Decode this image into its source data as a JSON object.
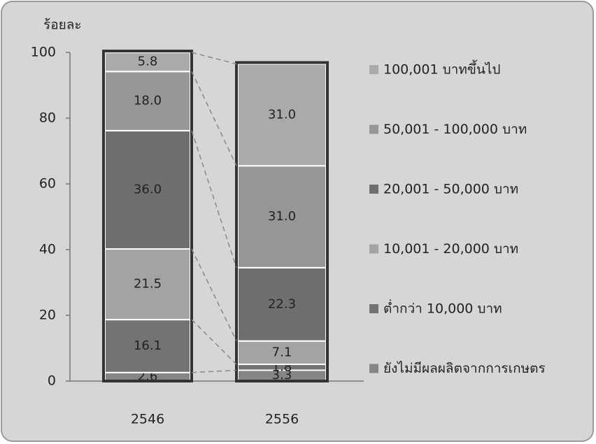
{
  "chart_data": {
    "type": "stacked_bar",
    "y_label": "ร้อยละ",
    "categories": [
      "2546",
      "2556"
    ],
    "series": [
      {
        "name": "ยังไม่มีผลผลิตจากการเกษตร",
        "color": "#858585",
        "values": [
          2.6,
          3.3
        ]
      },
      {
        "name": "ต่ำกว่า 10,000 บาท",
        "color": "#737373",
        "values": [
          16.1,
          1.8
        ]
      },
      {
        "name": "10,001 - 20,000 บาท",
        "color": "#a3a3a3",
        "values": [
          21.5,
          7.1
        ]
      },
      {
        "name": "20,001 - 50,000 บาท",
        "color": "#6f6f6f",
        "values": [
          36.0,
          22.3
        ]
      },
      {
        "name": "50,001 - 100,000 บาท",
        "color": "#969696",
        "values": [
          18.0,
          31.0
        ]
      },
      {
        "name": "100,001 บาทขึ้นไป",
        "color": "#aaaaaa",
        "values": [
          5.8,
          31.0
        ]
      }
    ],
    "value_labels": [
      [
        "2.6",
        "3.3"
      ],
      [
        "16.1",
        "1.8"
      ],
      [
        "21.5",
        "7.1"
      ],
      [
        "36.0",
        "22.3"
      ],
      [
        "18.0",
        "31.0"
      ],
      [
        "5.8",
        "31.0"
      ]
    ],
    "ylim": [
      0,
      100
    ],
    "yticks": [
      0,
      20,
      40,
      60,
      80,
      100
    ]
  }
}
